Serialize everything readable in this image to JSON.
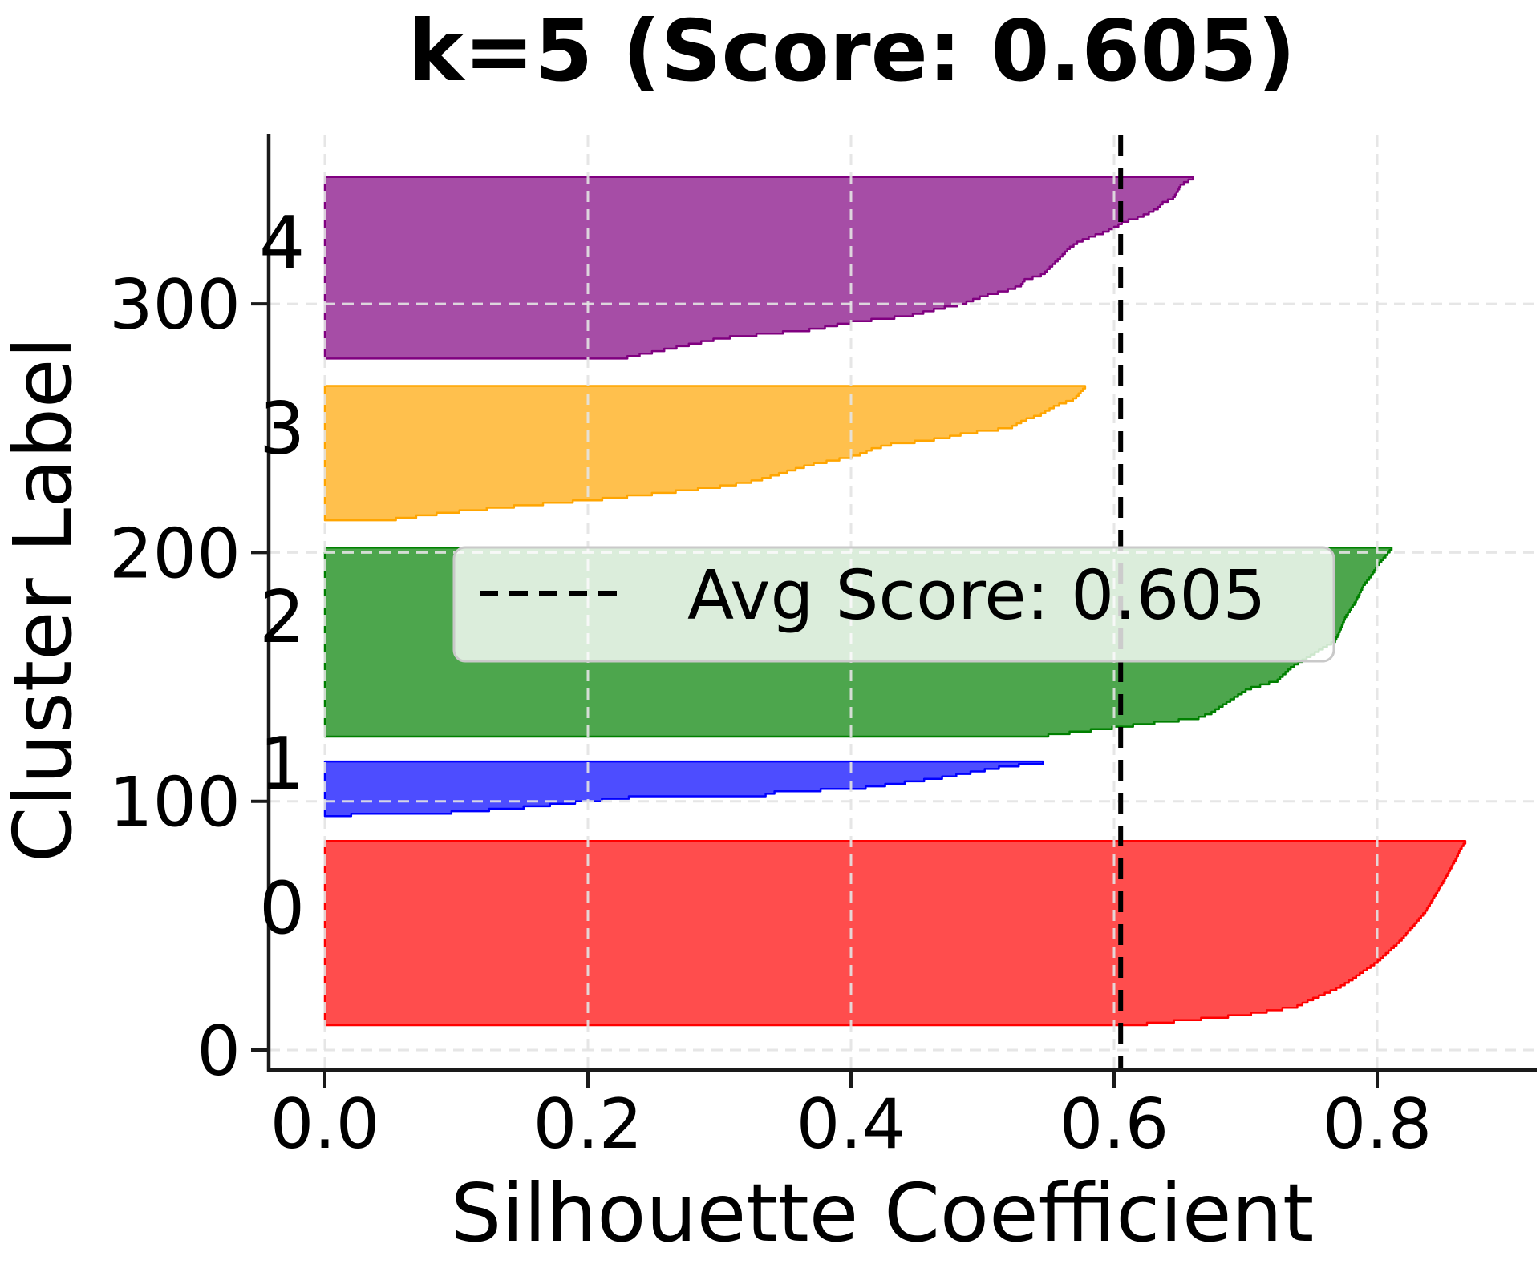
{
  "title": "k=5 (Score: 0.605)",
  "axes": {
    "xlabel": "Silhouette Coefficient",
    "ylabel": "Cluster Label"
  },
  "legend": {
    "label": "Avg Score: 0.605"
  },
  "chart_data": {
    "type": "area",
    "subtype": "silhouette-plot",
    "title": "k=5 (Score: 0.605)",
    "xlabel": "Silhouette Coefficient",
    "ylabel": "Cluster Label",
    "avg_score": 0.605,
    "x_ticks": [
      0.0,
      0.2,
      0.4,
      0.6,
      0.8
    ],
    "x_tick_labels": [
      "0.0",
      "0.2",
      "0.4",
      "0.6",
      "0.8"
    ],
    "y_ticks": [
      0,
      100,
      200,
      300
    ],
    "y_tick_labels": [
      "0",
      "100",
      "200",
      "300"
    ],
    "xlim": [
      -0.043,
      0.92
    ],
    "ylim": [
      -8,
      368
    ],
    "grid": true,
    "legend_position": "center",
    "colors": {
      "avg_line": "#000000",
      "grid": "#e4e4e4",
      "spine": "#1a1a1a",
      "legend_bg": "rgba(255,255,255,0.8)",
      "legend_border": "#c9c9c9"
    },
    "clusters": [
      {
        "label": "0",
        "fill": "#ff4d4d",
        "edge": "#ff0000",
        "y_start": 10,
        "size": 74,
        "min_value": 0.62,
        "max_value": 0.867,
        "curve": [
          [
            0,
            0.625
          ],
          [
            0.05,
            0.7
          ],
          [
            0.095,
            0.739
          ],
          [
            0.13,
            0.749
          ],
          [
            0.195,
            0.77
          ],
          [
            0.24,
            0.78
          ],
          [
            0.34,
            0.8
          ],
          [
            0.46,
            0.818
          ],
          [
            0.62,
            0.837
          ],
          [
            0.79,
            0.851
          ],
          [
            0.91,
            0.86
          ],
          [
            0.97,
            0.864
          ],
          [
            1,
            0.867
          ]
        ]
      },
      {
        "label": "1",
        "fill": "#4d4dff",
        "edge": "#0000ff",
        "y_start": 94,
        "size": 22,
        "min_value": 0.02,
        "max_value": 0.546,
        "curve": [
          [
            0,
            0.02
          ],
          [
            0.05,
            0.1
          ],
          [
            0.15,
            0.155
          ],
          [
            0.25,
            0.195
          ],
          [
            0.33,
            0.23
          ],
          [
            0.36,
            0.24
          ],
          [
            0.38,
            0.335
          ],
          [
            0.43,
            0.342
          ],
          [
            0.52,
            0.41
          ],
          [
            0.7,
            0.466
          ],
          [
            0.85,
            0.5
          ],
          [
            0.925,
            0.517
          ],
          [
            1,
            0.546
          ]
        ]
      },
      {
        "label": "2",
        "fill": "#4da64d",
        "edge": "#008000",
        "y_start": 126,
        "size": 76,
        "min_value": 0.55,
        "max_value": 0.811,
        "curve": [
          [
            0,
            0.55
          ],
          [
            0.047,
            0.607
          ],
          [
            0.064,
            0.627
          ],
          [
            0.09,
            0.663
          ],
          [
            0.12,
            0.674
          ],
          [
            0.176,
            0.686
          ],
          [
            0.249,
            0.702
          ],
          [
            0.292,
            0.724
          ],
          [
            0.365,
            0.735
          ],
          [
            0.506,
            0.768
          ],
          [
            0.549,
            0.771
          ],
          [
            0.635,
            0.776
          ],
          [
            0.665,
            0.779
          ],
          [
            0.721,
            0.784
          ],
          [
            0.807,
            0.79
          ],
          [
            0.858,
            0.796
          ],
          [
            0.906,
            0.8
          ],
          [
            1,
            0.811
          ]
        ]
      },
      {
        "label": "3",
        "fill": "#ffc04d",
        "edge": "#ffa500",
        "y_start": 213,
        "size": 54,
        "min_value": 0.054,
        "max_value": 0.578,
        "curve": [
          [
            0,
            0.054
          ],
          [
            0.05,
            0.095
          ],
          [
            0.1,
            0.15
          ],
          [
            0.15,
            0.21
          ],
          [
            0.2,
            0.26
          ],
          [
            0.247,
            0.302
          ],
          [
            0.289,
            0.328
          ],
          [
            0.41,
            0.369
          ],
          [
            0.47,
            0.4
          ],
          [
            0.5,
            0.41
          ],
          [
            0.53,
            0.416
          ],
          [
            0.57,
            0.432
          ],
          [
            0.59,
            0.454
          ],
          [
            0.62,
            0.474
          ],
          [
            0.65,
            0.487
          ],
          [
            0.69,
            0.521
          ],
          [
            0.75,
            0.532
          ],
          [
            0.79,
            0.544
          ],
          [
            0.86,
            0.556
          ],
          [
            0.91,
            0.57
          ],
          [
            1,
            0.578
          ]
        ]
      },
      {
        "label": "4",
        "fill": "#a64da6",
        "edge": "#800080",
        "y_start": 278,
        "size": 73,
        "min_value": 0.23,
        "max_value": 0.66,
        "curve": [
          [
            0,
            0.23
          ],
          [
            0.107,
            0.302
          ],
          [
            0.156,
            0.373
          ],
          [
            0.196,
            0.4
          ],
          [
            0.231,
            0.444
          ],
          [
            0.276,
            0.47
          ],
          [
            0.298,
            0.485
          ],
          [
            0.342,
            0.501
          ],
          [
            0.378,
            0.521
          ],
          [
            0.4,
            0.529
          ],
          [
            0.431,
            0.532
          ],
          [
            0.462,
            0.546
          ],
          [
            0.507,
            0.552
          ],
          [
            0.533,
            0.556
          ],
          [
            0.609,
            0.566
          ],
          [
            0.644,
            0.573
          ],
          [
            0.676,
            0.584
          ],
          [
            0.698,
            0.593
          ],
          [
            0.729,
            0.602
          ],
          [
            0.756,
            0.607
          ],
          [
            0.778,
            0.618
          ],
          [
            0.8,
            0.625
          ],
          [
            0.831,
            0.633
          ],
          [
            0.862,
            0.637
          ],
          [
            0.889,
            0.645
          ],
          [
            0.911,
            0.647
          ],
          [
            0.964,
            0.651
          ],
          [
            1,
            0.66
          ]
        ]
      }
    ]
  }
}
